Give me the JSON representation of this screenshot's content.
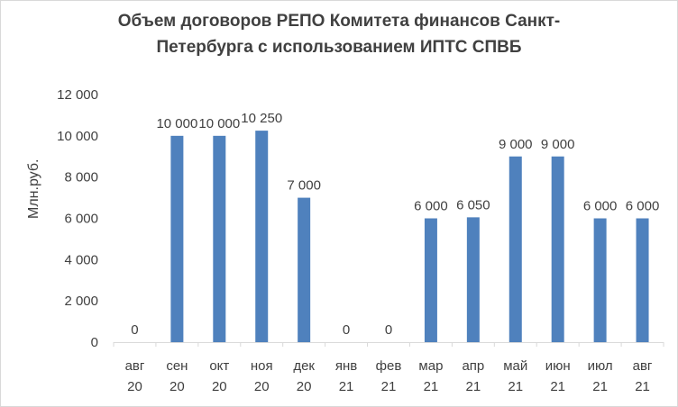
{
  "chart_data": {
    "type": "bar",
    "title_lines": [
      "Объем договоров  РЕПО Комитета финансов Санкт-",
      "Петербурга с использованием ИПТС СПВБ"
    ],
    "xlabel": "",
    "ylabel": "Млн.руб.",
    "ylim": [
      0,
      12000
    ],
    "yticks": [
      "0",
      "2 000",
      "4 000",
      "6 000",
      "8 000",
      "10 000",
      "12 000"
    ],
    "categories": [
      [
        "авг",
        "20"
      ],
      [
        "сен",
        "20"
      ],
      [
        "окт",
        "20"
      ],
      [
        "ноя",
        "20"
      ],
      [
        "дек",
        "20"
      ],
      [
        "янв",
        "21"
      ],
      [
        "фев",
        "21"
      ],
      [
        "мар",
        "21"
      ],
      [
        "апр",
        "21"
      ],
      [
        "май",
        "21"
      ],
      [
        "июн",
        "21"
      ],
      [
        "июл",
        "21"
      ],
      [
        "авг",
        "21"
      ]
    ],
    "values": [
      0,
      10000,
      10000,
      10250,
      7000,
      0,
      0,
      6000,
      6050,
      9000,
      9000,
      6000,
      6000
    ],
    "data_labels": [
      "0",
      "10 000",
      "10 000",
      "10 250",
      "7 000",
      "0",
      "0",
      "6 000",
      "6 050",
      "9 000",
      "9 000",
      "6 000",
      "6 000"
    ],
    "grid": false,
    "legend": "none",
    "bar_color": "#4f81bd",
    "text_color": "#404040",
    "axis_color": "#d9d9d9"
  }
}
